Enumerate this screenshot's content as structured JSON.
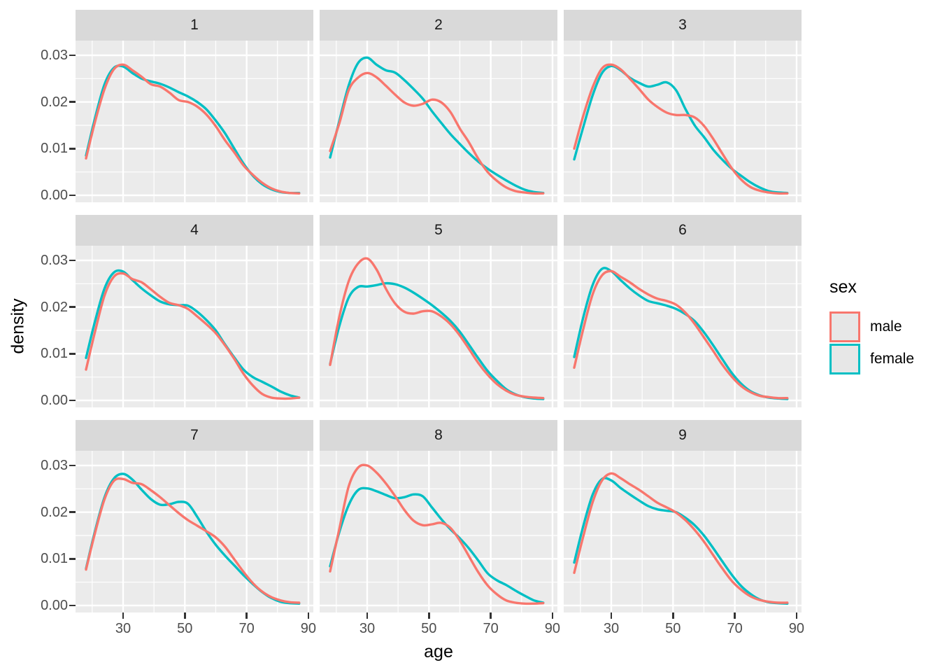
{
  "chart_data": {
    "type": "line",
    "subtype": "faceted-density",
    "title": "",
    "xlabel": "age",
    "ylabel": "density",
    "x_tick_labels": [
      "30",
      "50",
      "70",
      "90"
    ],
    "x_tick_values": [
      30,
      50,
      70,
      90
    ],
    "x_minor_gridlines": [
      20,
      40,
      60,
      80
    ],
    "y_tick_labels": [
      "0.03",
      "0.02",
      "0.01",
      "0.00"
    ],
    "y_tick_values": [
      0.03,
      0.02,
      0.01,
      0.0
    ],
    "y_minor_gridlines": [
      0.005,
      0.015,
      0.025
    ],
    "xlim": [
      14.6,
      91.6
    ],
    "ylim": [
      -0.0015,
      0.03315
    ],
    "grid": "on",
    "legend": {
      "title": "sex",
      "position": "right",
      "entries": [
        {
          "label": "male",
          "color": "#F8766D"
        },
        {
          "label": "female",
          "color": "#00BFC4"
        }
      ]
    },
    "value_scale": 0.0001,
    "ages": [
      18,
      21,
      24,
      27,
      30,
      33,
      36,
      39,
      42,
      45,
      48,
      51,
      54,
      57,
      60,
      63,
      66,
      69,
      72,
      75,
      78,
      81,
      84,
      87
    ],
    "facets": [
      {
        "label": "1",
        "male": [
          79,
          160,
          228,
          270,
          280,
          268,
          254,
          238,
          233,
          220,
          204,
          200,
          190,
          173,
          148,
          118,
          92,
          64,
          44,
          27,
          15,
          8,
          5,
          4
        ],
        "female": [
          85,
          168,
          238,
          273,
          276,
          262,
          250,
          244,
          239,
          231,
          221,
          212,
          200,
          184,
          160,
          133,
          100,
          68,
          42,
          24,
          13,
          7,
          5,
          5
        ]
      },
      {
        "label": "2",
        "male": [
          95,
          155,
          225,
          252,
          262,
          253,
          235,
          216,
          199,
          192,
          196,
          205,
          199,
          178,
          143,
          113,
          78,
          50,
          31,
          17,
          9,
          6,
          4,
          4
        ],
        "female": [
          81,
          160,
          235,
          283,
          295,
          280,
          268,
          263,
          247,
          228,
          207,
          180,
          155,
          131,
          110,
          90,
          72,
          57,
          44,
          32,
          21,
          12,
          7,
          5
        ]
      },
      {
        "label": "3",
        "male": [
          100,
          172,
          232,
          272,
          280,
          270,
          250,
          228,
          205,
          189,
          177,
          172,
          172,
          167,
          149,
          121,
          89,
          58,
          34,
          18,
          10,
          6,
          4,
          4
        ],
        "female": [
          77,
          148,
          215,
          262,
          277,
          268,
          252,
          241,
          233,
          237,
          242,
          225,
          185,
          150,
          125,
          98,
          76,
          57,
          42,
          28,
          17,
          9,
          6,
          5
        ]
      },
      {
        "label": "4",
        "male": [
          66,
          150,
          225,
          265,
          272,
          260,
          253,
          238,
          222,
          209,
          204,
          196,
          180,
          163,
          144,
          118,
          89,
          57,
          32,
          14,
          6,
          4,
          4,
          6
        ],
        "female": [
          91,
          172,
          240,
          274,
          276,
          258,
          240,
          225,
          212,
          206,
          204,
          203,
          190,
          172,
          150,
          120,
          92,
          66,
          50,
          40,
          30,
          19,
          11,
          6
        ]
      },
      {
        "label": "5",
        "male": [
          76,
          180,
          255,
          293,
          304,
          281,
          240,
          208,
          190,
          186,
          191,
          191,
          180,
          163,
          139,
          110,
          80,
          55,
          35,
          21,
          12,
          8,
          6,
          5
        ],
        "female": [
          78,
          160,
          220,
          243,
          244,
          247,
          251,
          249,
          242,
          231,
          218,
          204,
          188,
          170,
          147,
          119,
          90,
          63,
          42,
          24,
          13,
          7,
          4,
          3
        ]
      },
      {
        "label": "6",
        "male": [
          70,
          155,
          228,
          268,
          277,
          265,
          253,
          239,
          227,
          218,
          213,
          205,
          188,
          164,
          135,
          106,
          76,
          51,
          31,
          18,
          10,
          7,
          5,
          5
        ],
        "female": [
          93,
          180,
          248,
          282,
          277,
          258,
          240,
          225,
          213,
          208,
          203,
          196,
          185,
          170,
          146,
          118,
          88,
          59,
          36,
          20,
          11,
          6,
          4,
          3
        ]
      },
      {
        "label": "7",
        "male": [
          77,
          158,
          228,
          267,
          271,
          263,
          260,
          247,
          232,
          215,
          198,
          183,
          171,
          159,
          146,
          126,
          99,
          72,
          48,
          30,
          18,
          11,
          7,
          6
        ],
        "female": [
          79,
          162,
          232,
          272,
          282,
          270,
          248,
          228,
          216,
          217,
          222,
          218,
          190,
          158,
          130,
          107,
          86,
          65,
          46,
          29,
          16,
          8,
          5,
          4
        ]
      },
      {
        "label": "8",
        "male": [
          73,
          165,
          255,
          295,
          300,
          285,
          262,
          235,
          205,
          182,
          172,
          174,
          177,
          166,
          139,
          105,
          71,
          43,
          24,
          11,
          6,
          4,
          4,
          5
        ],
        "female": [
          84,
          158,
          215,
          247,
          251,
          245,
          237,
          230,
          232,
          238,
          234,
          210,
          185,
          163,
          144,
          122,
          96,
          69,
          54,
          44,
          32,
          21,
          11,
          6
        ]
      },
      {
        "label": "9",
        "male": [
          70,
          150,
          222,
          268,
          283,
          273,
          260,
          248,
          234,
          220,
          210,
          199,
          183,
          162,
          137,
          108,
          79,
          53,
          34,
          20,
          12,
          8,
          6,
          6
        ],
        "female": [
          92,
          172,
          238,
          271,
          268,
          252,
          238,
          225,
          213,
          206,
          203,
          200,
          188,
          172,
          150,
          123,
          94,
          66,
          42,
          25,
          13,
          7,
          5,
          4
        ]
      }
    ],
    "theme": {
      "panel_bg": "#EBEBEB",
      "strip_bg": "#D9D9D9",
      "grid_color": "#FFFFFF",
      "tick_text_color": "#4D4D4D",
      "tick_mark_color": "#333333",
      "legend_key_bg": "#E7E7E7"
    }
  }
}
